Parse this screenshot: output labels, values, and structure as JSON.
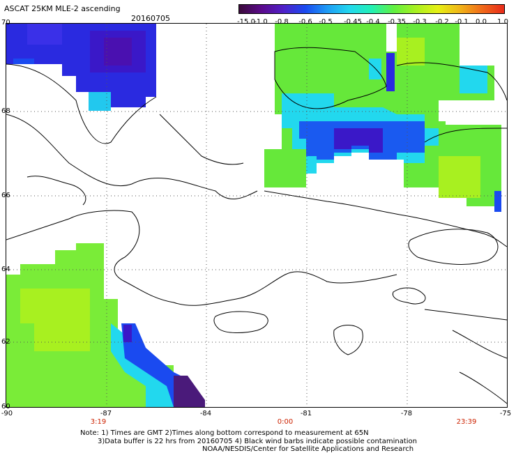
{
  "header": {
    "title": "ASCAT 25KM MLE-2 ascending",
    "date": "20160705"
  },
  "colorbar": {
    "labels": [
      "-15.0",
      "-1.0",
      "-0.8",
      "-0.6",
      "-0.5",
      "-0.45",
      "-0.4",
      "-0.35",
      "-0.3",
      "-0.2",
      "-0.1",
      "0.0",
      "1.0"
    ],
    "colors": [
      "#3a0a3a",
      "#5a0a8a",
      "#5020c8",
      "#1a4af0",
      "#1e9cf5",
      "#22d8ee",
      "#22f0b4",
      "#60f040",
      "#a8f020",
      "#e6f014",
      "#f0b418",
      "#f06a1a",
      "#e82a1a"
    ]
  },
  "map": {
    "lat_ticks": [
      "70",
      "68",
      "66",
      "64",
      "62",
      "60"
    ],
    "lon_ticks": [
      "-90",
      "-87",
      "-84",
      "-81",
      "-78",
      "-75"
    ],
    "time_ticks": [
      "3:19",
      "0:00",
      "23:39"
    ]
  },
  "notes": [
    "Note: 1) Times are GMT 2)Times along bottom correspond to measurement at 65N",
    "3)Data buffer is 22 hrs from 20160705 4) Black wind barbs indicate possible contamination",
    "NOAA/NESDIS/Center for Satellite Applications and Research"
  ]
}
